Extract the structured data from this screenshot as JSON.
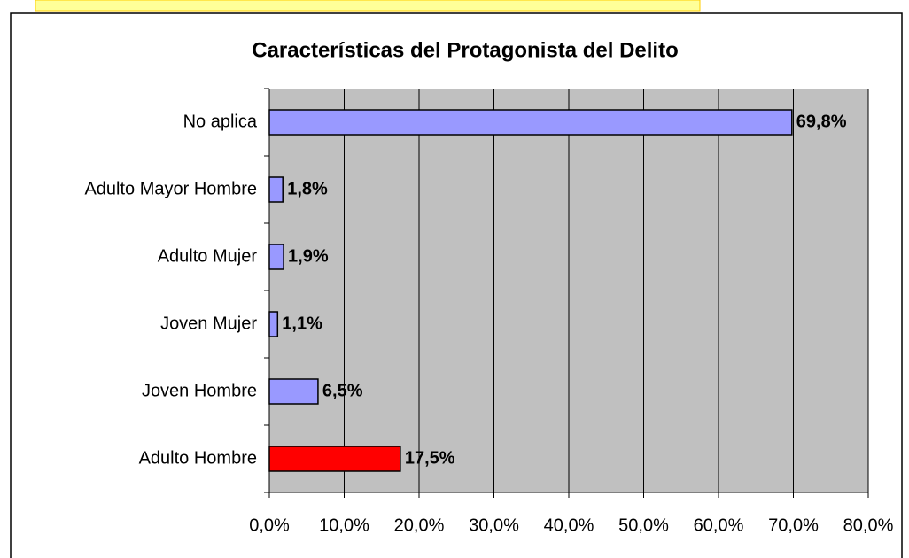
{
  "chart_data": {
    "type": "bar",
    "orientation": "horizontal",
    "title": "Características del Protagonista del Delito",
    "categories": [
      "No aplica",
      "Adulto Mayor Hombre",
      "Adulto Mujer",
      "Joven Mujer",
      "Joven Hombre",
      "Adulto Hombre"
    ],
    "values": [
      69.8,
      1.8,
      1.9,
      1.1,
      6.5,
      17.5
    ],
    "value_labels": [
      "69,8%",
      "1,8%",
      "1,9%",
      "1,1%",
      "6,5%",
      "17,5%"
    ],
    "colors": [
      "#9999ff",
      "#9999ff",
      "#9999ff",
      "#9999ff",
      "#9999ff",
      "#ff0000"
    ],
    "xlim": [
      0,
      80
    ],
    "xticks": [
      {
        "value": 0,
        "label": "0,0%"
      },
      {
        "value": 10,
        "label": "10,0%"
      },
      {
        "value": 20,
        "label": "20,0%"
      },
      {
        "value": 30,
        "label": "30,0%"
      },
      {
        "value": 40,
        "label": "40,0%"
      },
      {
        "value": 50,
        "label": "50,0%"
      },
      {
        "value": 60,
        "label": "60,0%"
      },
      {
        "value": 70,
        "label": "70,0%"
      },
      {
        "value": 80,
        "label": "80,0%"
      }
    ],
    "grid": true
  }
}
